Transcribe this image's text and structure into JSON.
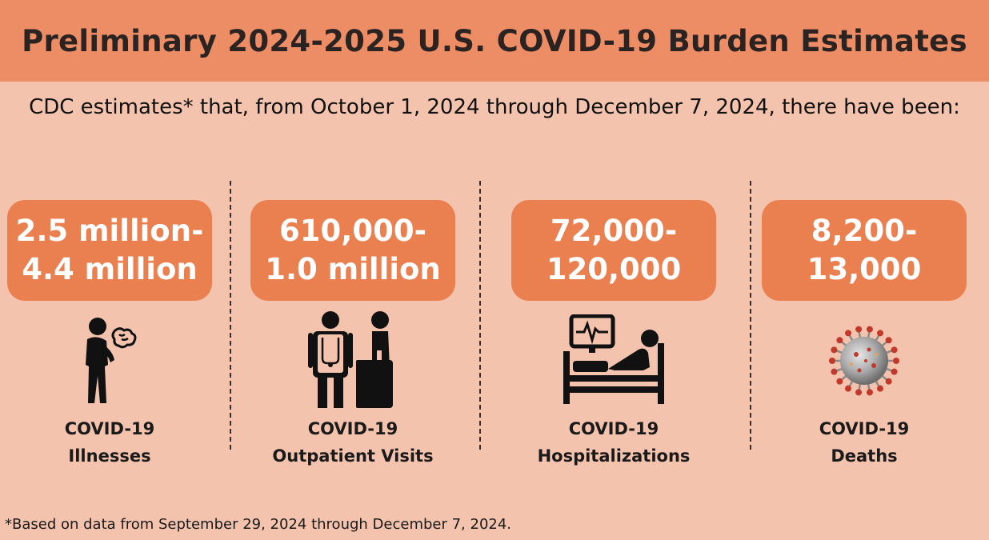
{
  "title": "Preliminary 2024-2025 U.S. COVID-19 Burden Estimates",
  "intro": "CDC estimates* that, from October 1, 2024 through December 7, 2024, there have been:",
  "stats": [
    {
      "range_top": "2.5 million-",
      "range_bottom": "4.4 million",
      "label_line1": "COVID-19",
      "label_line2": "Illnesses",
      "icon": "sick-person-icon"
    },
    {
      "range_top": "610,000-",
      "range_bottom": "1.0 million",
      "label_line1": "COVID-19",
      "label_line2": "Outpatient Visits",
      "icon": "doctor-patient-icon"
    },
    {
      "range_top": "72,000-",
      "range_bottom": "120,000",
      "label_line1": "COVID-19",
      "label_line2": "Hospitalizations",
      "icon": "hospital-bed-icon"
    },
    {
      "range_top": "8,200-",
      "range_bottom": "13,000",
      "label_line1": "COVID-19",
      "label_line2": "Deaths",
      "icon": "virus-icon"
    }
  ],
  "footnote": "*Based on data from September 29, 2024 through December 7, 2024.",
  "colors": {
    "header": "#ec8d65",
    "background": "#f4c3ad",
    "pill": "#ea7f50"
  }
}
